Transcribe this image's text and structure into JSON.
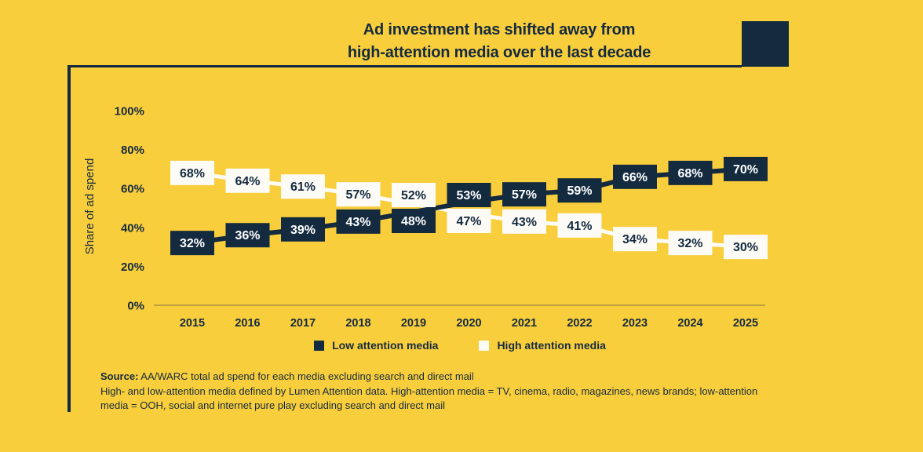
{
  "title": {
    "line1": "Ad investment has shifted away from",
    "line2": "high-attention media over the last decade"
  },
  "chart_data": {
    "type": "line",
    "x": [
      "2015",
      "2016",
      "2017",
      "2018",
      "2019",
      "2020",
      "2021",
      "2022",
      "2023",
      "2024",
      "2025"
    ],
    "series": [
      {
        "name": "Low attention media",
        "values": [
          32,
          36,
          39,
          43,
          48,
          53,
          57,
          59,
          66,
          68,
          70
        ],
        "line_color": "#142A3F",
        "label_box_fill": "#142A3F",
        "label_text_color": "#FFFFFF"
      },
      {
        "name": "High attention media",
        "values": [
          68,
          64,
          61,
          57,
          52,
          47,
          43,
          41,
          34,
          32,
          30
        ],
        "line_color": "#FCFBF6",
        "label_box_fill": "#FCFBF6",
        "label_text_color": "#142A3F"
      }
    ],
    "ylabel": "Share of ad spend",
    "yticks": [
      {
        "value": 0,
        "label": "0%"
      },
      {
        "value": 20,
        "label": "20%"
      },
      {
        "value": 40,
        "label": "40%"
      },
      {
        "value": 60,
        "label": "60%"
      },
      {
        "value": 80,
        "label": "80%"
      },
      {
        "value": 100,
        "label": "100%"
      }
    ],
    "ylim": [
      0,
      100
    ],
    "grid": false,
    "legend_position": "bottom",
    "data_labels": "boxed percentages on every point"
  },
  "legend": {
    "items": [
      {
        "label": "Low attention media",
        "color": "#142A3F"
      },
      {
        "label": "High attention media",
        "color": "#FCFBF6"
      }
    ]
  },
  "source": {
    "prefix": "Source:",
    "line1_rest": " AA/WARC total ad spend for each media excluding search and direct mail",
    "line2": "High- and low-attention media defined by Lumen Attention data. High-attention media = TV, cinema, radio, magazines, news brands; low-attention",
    "line3": "media = OOH, social and internet pure play excluding search and direct mail"
  },
  "colors": {
    "background": "#F9CE3C",
    "navy": "#142A3F",
    "off_white": "#FCFBF6",
    "axis_line": "rgba(20,42,63,0.55)"
  }
}
